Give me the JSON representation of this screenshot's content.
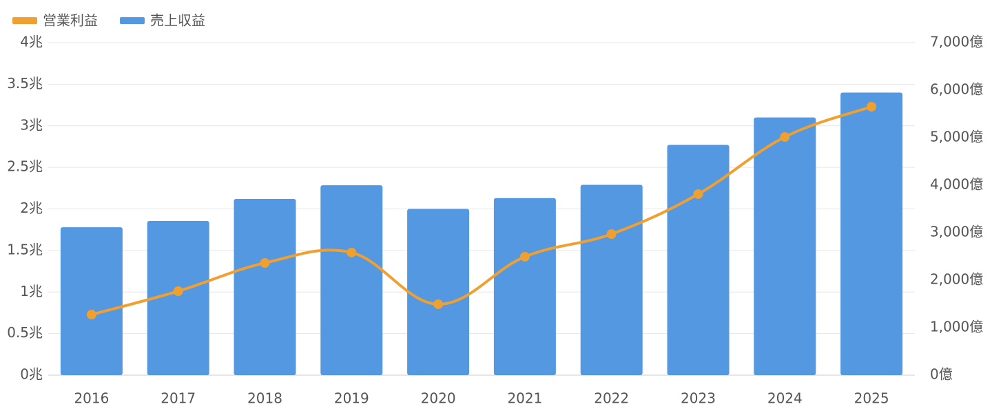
{
  "chart_data": {
    "type": "bar",
    "categories": [
      "2016",
      "2017",
      "2018",
      "2019",
      "2020",
      "2021",
      "2022",
      "2023",
      "2024",
      "2025"
    ],
    "series": [
      {
        "name": "営業利益",
        "type": "line",
        "axis": "y2",
        "color": "#f0a030",
        "values": [
          1275,
          1768,
          2362,
          2580,
          1493,
          2493,
          2971,
          3812,
          5014,
          5652
        ]
      },
      {
        "name": "売上収益",
        "type": "bar",
        "color": "#5398e0",
        "values": [
          1.78,
          1.855,
          2.12,
          2.285,
          2.0,
          2.13,
          2.29,
          2.77,
          3.1,
          3.4
        ]
      }
    ],
    "ylim": [
      0,
      4
    ],
    "yticks": [
      {
        "value": 0,
        "label": "0兆"
      },
      {
        "value": 0.5,
        "label": "0.5兆"
      },
      {
        "value": 1,
        "label": "1兆"
      },
      {
        "value": 1.5,
        "label": "1.5兆"
      },
      {
        "value": 2,
        "label": "2兆"
      },
      {
        "value": 2.5,
        "label": "2.5兆"
      },
      {
        "value": 3,
        "label": "3兆"
      },
      {
        "value": 3.5,
        "label": "3.5兆"
      },
      {
        "value": 4,
        "label": "4兆"
      }
    ],
    "y2lim": [
      0,
      7000
    ],
    "y2ticks": [
      {
        "value": 0,
        "label": "0億"
      },
      {
        "value": 1000,
        "label": "1,000億"
      },
      {
        "value": 2000,
        "label": "2,000億"
      },
      {
        "value": 3000,
        "label": "3,000億"
      },
      {
        "value": 4000,
        "label": "4,000億"
      },
      {
        "value": 5000,
        "label": "5,000億"
      },
      {
        "value": 6000,
        "label": "6,000億"
      },
      {
        "value": 7000,
        "label": "7,000億"
      }
    ],
    "grid": true,
    "legend": "top-left"
  }
}
